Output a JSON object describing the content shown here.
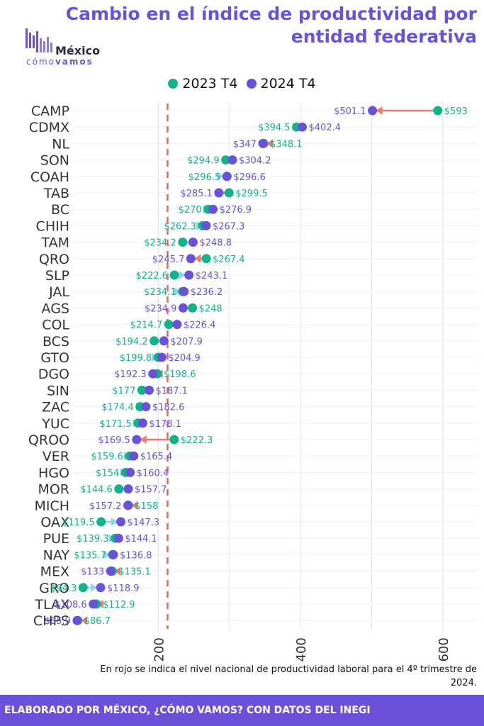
{
  "title": "Cambio en el índice de productividad por entidad federativa",
  "logo": {
    "name": "México",
    "sub_light": "cómo",
    "sub_bold": "vamos"
  },
  "legend": [
    {
      "label": "2023 T4",
      "color": "#12b389"
    },
    {
      "label": "2024 T4",
      "color": "#6a52d8"
    }
  ],
  "note": "En rojo se indica el nivel nacional de productividad laboral para el 4º trimestre de 2024.",
  "footer": "ELABORADO POR MÉXICO, ¿CÓMO VAMOS? CON DATOS DEL INEGI",
  "colors": {
    "series_2023": "#12b389",
    "series_2024": "#6a52d8",
    "decrease_arrow": "#f07a6e",
    "increase_arrow": "#8fd3f0",
    "national_line": "#f0645c",
    "grid": "#e6e6e6"
  },
  "chart_data": {
    "type": "dumbbell",
    "xlabel": "",
    "ylabel": "",
    "xlim": [
      80,
      650
    ],
    "x_ticks": [
      200,
      400,
      600
    ],
    "national_reference": 213,
    "grid": true,
    "states": [
      "CAMP",
      "CDMX",
      "NL",
      "SON",
      "COAH",
      "TAB",
      "BC",
      "CHIH",
      "TAM",
      "QRO",
      "SLP",
      "JAL",
      "AGS",
      "COL",
      "BCS",
      "GTO",
      "DGO",
      "SIN",
      "ZAC",
      "YUC",
      "QROO",
      "VER",
      "HGO",
      "MOR",
      "MICH",
      "OAX",
      "PUE",
      "NAY",
      "MEX",
      "GRO",
      "TLAX",
      "CHPS"
    ],
    "series": [
      {
        "name": "2023 T4",
        "values": [
          593,
          394.5,
          348.1,
          294.9,
          296.5,
          299.5,
          270,
          262.3,
          234.2,
          267.4,
          222.6,
          234.1,
          248,
          214.7,
          194.2,
          199.8,
          198.6,
          177,
          174.4,
          171.5,
          222.3,
          159.6,
          154,
          144.6,
          158,
          119.5,
          139.3,
          135.7,
          135.1,
          94.3,
          112.9,
          86.7
        ]
      },
      {
        "name": "2024 T4",
        "values": [
          501.1,
          402.4,
          347,
          304.2,
          296.6,
          285.1,
          276.9,
          267.3,
          248.8,
          245.7,
          243.1,
          236.2,
          234.9,
          226.4,
          207.9,
          204.9,
          192.3,
          187.1,
          182.6,
          178.1,
          169.5,
          165.4,
          160.4,
          157.7,
          157.2,
          147.3,
          144.1,
          136.8,
          133,
          118.9,
          108.6,
          85.9
        ]
      }
    ]
  }
}
